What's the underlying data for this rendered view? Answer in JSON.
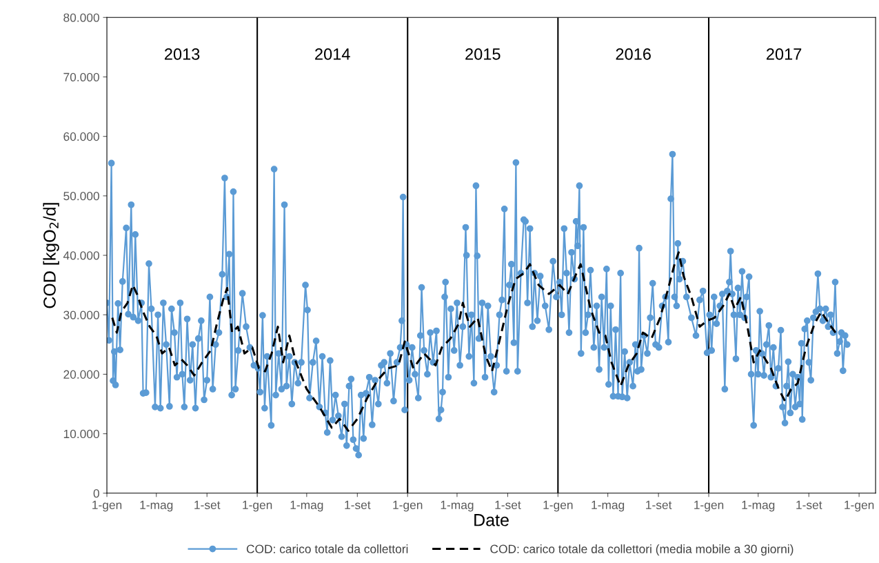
{
  "chart_data": {
    "type": "line",
    "xlabel": "Date",
    "ylabel": "COD [kgO$_{2}$/d]",
    "xlim": [
      "2013-01-01",
      "2018-02-10"
    ],
    "xticks": [
      {
        "value": "2013-01-01",
        "label": "1-gen"
      },
      {
        "value": "2013-05-01",
        "label": "1-mag"
      },
      {
        "value": "2013-09-01",
        "label": "1-set"
      },
      {
        "value": "2014-01-01",
        "label": "1-gen"
      },
      {
        "value": "2014-05-01",
        "label": "1-mag"
      },
      {
        "value": "2014-09-01",
        "label": "1-set"
      },
      {
        "value": "2015-01-01",
        "label": "1-gen"
      },
      {
        "value": "2015-05-01",
        "label": "1-mag"
      },
      {
        "value": "2015-09-01",
        "label": "1-set"
      },
      {
        "value": "2016-01-01",
        "label": "1-gen"
      },
      {
        "value": "2016-05-01",
        "label": "1-mag"
      },
      {
        "value": "2016-09-01",
        "label": "1-set"
      },
      {
        "value": "2017-01-01",
        "label": "1-gen"
      },
      {
        "value": "2017-05-01",
        "label": "1-mag"
      },
      {
        "value": "2017-09-01",
        "label": "1-set"
      },
      {
        "value": "2018-01-01",
        "label": "1-gen"
      }
    ],
    "ylim": [
      0,
      80000
    ],
    "yticks": [
      0,
      {
        "value": 10000,
        "label": "10.000"
      },
      {
        "value": 20000,
        "label": "20.000"
      },
      {
        "value": 30000,
        "label": "30.000"
      },
      {
        "value": 40000,
        "label": "40.000"
      },
      {
        "value": 50000,
        "label": "50.000"
      },
      {
        "value": 60000,
        "label": "60.000"
      },
      {
        "value": 70000,
        "label": "70.000"
      },
      {
        "value": 80000,
        "label": "80.000"
      }
    ],
    "grid": false,
    "legend": "bottom",
    "ref_lines": [
      {
        "axis": "x",
        "value": "2014-01-01",
        "color": "#000000",
        "line_style": "solid"
      },
      {
        "axis": "x",
        "value": "2015-01-01",
        "color": "#000000",
        "line_style": "solid"
      },
      {
        "axis": "x",
        "value": "2016-01-01",
        "color": "#000000",
        "line_style": "solid"
      },
      {
        "axis": "x",
        "value": "2017-01-01",
        "color": "#000000",
        "line_style": "solid"
      }
    ],
    "annotations": [
      "2013",
      "2014",
      "2015",
      "2016",
      "2017"
    ],
    "series": [
      {
        "name": "COD: carico totale da collettori",
        "color": "#5b9bd5",
        "marker": "circle",
        "line_style": "solid",
        "x": [
          "2013-01-01",
          "2013-01-06",
          "2013-01-12",
          "2013-01-16",
          "2013-01-19",
          "2013-01-22",
          "2013-01-28",
          "2013-02-02",
          "2013-02-08",
          "2013-02-17",
          "2013-02-22",
          "2013-03-01",
          "2013-03-06",
          "2013-03-11",
          "2013-03-18",
          "2013-03-26",
          "2013-03-30",
          "2013-04-06",
          "2013-04-13",
          "2013-04-19",
          "2013-04-28",
          "2013-05-05",
          "2013-05-11",
          "2013-05-18",
          "2013-05-25",
          "2013-06-02",
          "2013-06-07",
          "2013-06-14",
          "2013-06-20",
          "2013-06-28",
          "2013-07-03",
          "2013-07-08",
          "2013-07-15",
          "2013-07-22",
          "2013-07-28",
          "2013-08-04",
          "2013-08-11",
          "2013-08-18",
          "2013-08-25",
          "2013-09-01",
          "2013-09-08",
          "2013-09-15",
          "2013-09-22",
          "2013-09-30",
          "2013-10-08",
          "2013-10-14",
          "2013-10-19",
          "2013-10-25",
          "2013-10-31",
          "2013-11-04",
          "2013-11-09",
          "2013-11-16",
          "2013-11-26",
          "2013-12-05",
          "2013-12-14",
          "2013-12-24",
          "2014-01-03",
          "2014-01-08",
          "2014-01-14",
          "2014-01-19",
          "2014-01-25",
          "2014-02-04",
          "2014-02-11",
          "2014-02-15",
          "2014-02-22",
          "2014-03-01",
          "2014-03-08",
          "2014-03-13",
          "2014-03-20",
          "2014-03-26",
          "2014-04-02",
          "2014-04-10",
          "2014-04-18",
          "2014-04-28",
          "2014-05-03",
          "2014-05-08",
          "2014-05-16",
          "2014-05-24",
          "2014-06-01",
          "2014-06-08",
          "2014-06-15",
          "2014-06-20",
          "2014-06-27",
          "2014-07-03",
          "2014-07-10",
          "2014-07-17",
          "2014-07-25",
          "2014-08-01",
          "2014-08-06",
          "2014-08-12",
          "2014-08-17",
          "2014-08-22",
          "2014-08-29",
          "2014-09-04",
          "2014-09-10",
          "2014-09-16",
          "2014-09-22",
          "2014-09-30",
          "2014-10-07",
          "2014-10-14",
          "2014-10-22",
          "2014-10-29",
          "2014-11-05",
          "2014-11-12",
          "2014-11-20",
          "2014-11-28",
          "2014-12-06",
          "2014-12-14",
          "2014-12-18",
          "2014-12-21",
          "2014-12-25",
          "2014-12-29",
          "2015-01-05",
          "2015-01-12",
          "2015-01-19",
          "2015-01-27",
          "2015-02-01",
          "2015-02-04",
          "2015-02-10",
          "2015-02-18",
          "2015-02-25",
          "2015-03-04",
          "2015-03-12",
          "2015-03-18",
          "2015-03-23",
          "2015-03-27",
          "2015-04-01",
          "2015-04-03",
          "2015-04-10",
          "2015-04-16",
          "2015-04-24",
          "2015-05-01",
          "2015-05-08",
          "2015-05-15",
          "2015-05-22",
          "2015-05-24",
          "2015-05-30",
          "2015-06-05",
          "2015-06-11",
          "2015-06-16",
          "2015-06-19",
          "2015-06-23",
          "2015-07-01",
          "2015-07-08",
          "2015-07-15",
          "2015-07-22",
          "2015-07-30",
          "2015-08-05",
          "2015-08-12",
          "2015-08-18",
          "2015-08-24",
          "2015-08-29",
          "2015-09-05",
          "2015-09-10",
          "2015-09-16",
          "2015-09-21",
          "2015-09-25",
          "2015-10-03",
          "2015-10-10",
          "2015-10-14",
          "2015-10-19",
          "2015-10-25",
          "2015-10-31",
          "2015-11-05",
          "2015-11-12",
          "2015-11-19",
          "2015-12-01",
          "2015-12-10",
          "2015-12-20",
          "2015-12-28",
          "2016-01-05",
          "2016-01-10",
          "2016-01-16",
          "2016-01-22",
          "2016-01-28",
          "2016-02-03",
          "2016-02-10",
          "2016-02-14",
          "2016-02-18",
          "2016-02-22",
          "2016-02-26",
          "2016-03-03",
          "2016-03-08",
          "2016-03-14",
          "2016-03-20",
          "2016-03-28",
          "2016-04-04",
          "2016-04-10",
          "2016-04-16",
          "2016-04-22",
          "2016-04-28",
          "2016-05-03",
          "2016-05-08",
          "2016-05-14",
          "2016-05-20",
          "2016-05-26",
          "2016-06-01",
          "2016-06-05",
          "2016-06-11",
          "2016-06-17",
          "2016-06-23",
          "2016-07-01",
          "2016-07-07",
          "2016-07-12",
          "2016-07-16",
          "2016-07-21",
          "2016-07-28",
          "2016-08-05",
          "2016-08-12",
          "2016-08-18",
          "2016-08-25",
          "2016-09-02",
          "2016-09-10",
          "2016-09-18",
          "2016-09-25",
          "2016-10-01",
          "2016-10-05",
          "2016-10-10",
          "2016-10-15",
          "2016-10-18",
          "2016-10-22",
          "2016-10-30",
          "2016-11-08",
          "2016-11-20",
          "2016-12-01",
          "2016-12-10",
          "2016-12-18",
          "2016-12-28",
          "2017-01-03",
          "2017-01-08",
          "2017-01-14",
          "2017-01-20",
          "2017-01-28",
          "2017-02-03",
          "2017-02-09",
          "2017-02-15",
          "2017-02-20",
          "2017-02-23",
          "2017-02-27",
          "2017-03-03",
          "2017-03-08",
          "2017-03-13",
          "2017-03-18",
          "2017-03-23",
          "2017-03-29",
          "2017-04-03",
          "2017-04-09",
          "2017-04-14",
          "2017-04-20",
          "2017-04-26",
          "2017-05-01",
          "2017-05-05",
          "2017-05-10",
          "2017-05-15",
          "2017-05-21",
          "2017-05-27",
          "2017-06-01",
          "2017-06-07",
          "2017-06-13",
          "2017-06-19",
          "2017-06-25",
          "2017-06-29",
          "2017-07-05",
          "2017-07-09",
          "2017-07-13",
          "2017-07-18",
          "2017-07-24",
          "2017-07-30",
          "2017-08-05",
          "2017-08-10",
          "2017-08-14",
          "2017-08-16",
          "2017-08-22",
          "2017-08-28",
          "2017-09-01",
          "2017-09-06",
          "2017-09-12",
          "2017-09-18",
          "2017-09-23",
          "2017-09-28",
          "2017-10-05",
          "2017-10-12",
          "2017-10-18",
          "2017-10-24",
          "2017-10-30",
          "2017-11-04",
          "2017-11-09",
          "2017-11-15",
          "2017-11-19",
          "2017-11-23",
          "2017-11-28",
          "2017-12-03"
        ],
        "values": [
          32000,
          25700,
          55500,
          18900,
          23800,
          18200,
          31900,
          24100,
          35600,
          44600,
          30100,
          48500,
          29600,
          43500,
          29000,
          32000,
          16800,
          16900,
          38600,
          31000,
          14500,
          30000,
          14300,
          32000,
          25000,
          14600,
          31000,
          27000,
          19500,
          32000,
          20000,
          14500,
          29300,
          19000,
          25000,
          14300,
          26000,
          29000,
          15700,
          19000,
          33000,
          17500,
          25000,
          27000,
          36800,
          53000,
          33000,
          40200,
          16500,
          50700,
          17500,
          24000,
          33600,
          28000,
          24500,
          21500,
          21000,
          17000,
          29900,
          14300,
          23000,
          11400,
          54500,
          16500,
          23500,
          17500,
          48500,
          18000,
          23000,
          15000,
          22000,
          18500,
          22000,
          35000,
          30800,
          16000,
          22000,
          25600,
          14500,
          23000,
          13500,
          10200,
          22300,
          12300,
          16500,
          13000,
          9500,
          15000,
          8000,
          18000,
          19200,
          9000,
          7500,
          6400,
          16500,
          9200,
          16800,
          19500,
          11500,
          19000,
          15000,
          21500,
          22000,
          18500,
          23500,
          15500,
          22000,
          24500,
          29000,
          49800,
          14000,
          25000,
          19000,
          24500,
          20000,
          16000,
          26500,
          34600,
          24000,
          20000,
          27000,
          22000,
          27300,
          12500,
          14000,
          17000,
          33000,
          35500,
          19500,
          31000,
          24000,
          32000,
          21500,
          28000,
          44700,
          40000,
          23000,
          30000,
          18500,
          51700,
          39900,
          26000,
          32000,
          19500,
          31500,
          23000,
          17000,
          21500,
          30000,
          32500,
          47800,
          20500,
          35000,
          38500,
          25300,
          55600,
          20500,
          37000,
          46000,
          45700,
          32000,
          44500,
          28000,
          37000,
          29000,
          36500,
          31500,
          27500,
          39000,
          33000,
          35500,
          30000,
          44500,
          37000,
          27000,
          40500,
          36000,
          45700,
          41600,
          51700,
          23500,
          44700,
          27000,
          30000,
          37500,
          24500,
          31500,
          20800,
          33000,
          24500,
          37700,
          18300,
          31500,
          16300,
          27500,
          16300,
          37000,
          16200,
          23800,
          16000,
          22000,
          18000,
          25000,
          20500,
          41200,
          20800,
          26500,
          23500,
          29500,
          35300,
          25000,
          24500,
          31500,
          33000,
          25400,
          49500,
          57000,
          33000,
          31500,
          42000,
          36000,
          39000,
          33000,
          29500,
          26500,
          32500,
          34000,
          23600,
          30000,
          24000,
          33000,
          28500,
          31500,
          33500,
          17500,
          34000,
          35500,
          40700,
          33500,
          30000,
          22600,
          34500,
          30000,
          37300,
          29500,
          33000,
          36400,
          20000,
          11400,
          24000,
          20000,
          30600,
          23500,
          19800,
          25000,
          28200,
          19500,
          24500,
          18000,
          21000,
          27400,
          14500,
          11800,
          18000,
          22100,
          13500,
          20000,
          14500,
          19500,
          15000,
          25200,
          12400,
          27600,
          29000,
          22000,
          19000,
          29500,
          30500,
          36900,
          31000,
          29000,
          31000,
          28000,
          30000,
          27000,
          35500,
          23500,
          25500,
          27000,
          20600,
          26500,
          25000
        ]
      },
      {
        "name": "COD: carico totale da collettori (media mobile a 30 giorni)",
        "color": "#000000",
        "marker": "none",
        "line_style": "dashed",
        "x": [
          "2013-01-14",
          "2013-01-25",
          "2013-02-05",
          "2013-02-20",
          "2013-03-05",
          "2013-03-15",
          "2013-03-30",
          "2013-04-15",
          "2013-05-01",
          "2013-05-15",
          "2013-06-01",
          "2013-06-15",
          "2013-07-01",
          "2013-07-15",
          "2013-08-01",
          "2013-08-20",
          "2013-09-10",
          "2013-09-25",
          "2013-10-10",
          "2013-10-20",
          "2013-11-01",
          "2013-11-15",
          "2013-12-01",
          "2013-12-20",
          "2014-01-05",
          "2014-01-20",
          "2014-02-05",
          "2014-02-20",
          "2014-03-05",
          "2014-03-20",
          "2014-04-05",
          "2014-05-01",
          "2014-06-01",
          "2014-07-01",
          "2014-07-20",
          "2014-08-10",
          "2014-09-01",
          "2014-09-25",
          "2014-10-20",
          "2014-11-15",
          "2014-12-10",
          "2014-12-25",
          "2015-01-15",
          "2015-02-10",
          "2015-03-10",
          "2015-03-25",
          "2015-04-15",
          "2015-05-05",
          "2015-05-15",
          "2015-06-01",
          "2015-06-20",
          "2015-07-10",
          "2015-07-25",
          "2015-08-15",
          "2015-09-01",
          "2015-09-20",
          "2015-10-10",
          "2015-10-25",
          "2015-11-15",
          "2015-12-10",
          "2016-01-05",
          "2016-01-25",
          "2016-02-15",
          "2016-02-25",
          "2016-03-20",
          "2016-04-10",
          "2016-04-25",
          "2016-05-10",
          "2016-06-01",
          "2016-06-20",
          "2016-07-10",
          "2016-07-25",
          "2016-08-15",
          "2016-09-05",
          "2016-09-25",
          "2016-10-10",
          "2016-10-20",
          "2016-11-01",
          "2016-11-20",
          "2016-12-10",
          "2016-12-28",
          "2017-01-15",
          "2017-02-05",
          "2017-02-20",
          "2017-03-05",
          "2017-03-20",
          "2017-04-05",
          "2017-04-20",
          "2017-05-05",
          "2017-06-01",
          "2017-06-20",
          "2017-07-05",
          "2017-07-20",
          "2017-08-05",
          "2017-08-25",
          "2017-09-15",
          "2017-10-01",
          "2017-10-20",
          "2017-11-10"
        ],
        "values": [
          29500,
          27000,
          30500,
          32000,
          35000,
          33500,
          30500,
          28000,
          26500,
          23500,
          24500,
          21500,
          22500,
          21500,
          19800,
          22000,
          24000,
          28500,
          32500,
          34500,
          27000,
          28000,
          23500,
          24500,
          21000,
          20500,
          23500,
          28000,
          22000,
          26500,
          22000,
          17500,
          14500,
          11000,
          12500,
          10500,
          12500,
          16000,
          19000,
          21000,
          21500,
          25500,
          21000,
          23500,
          21500,
          24500,
          26000,
          28500,
          32000,
          28000,
          29500,
          23000,
          20500,
          26500,
          31500,
          36000,
          37000,
          38500,
          35000,
          33500,
          35000,
          33500,
          37000,
          38500,
          31000,
          27000,
          26500,
          22000,
          18000,
          21500,
          23500,
          27000,
          26000,
          29500,
          34500,
          38500,
          40500,
          36500,
          33000,
          28000,
          29000,
          29500,
          31500,
          33500,
          31000,
          33000,
          28000,
          22000,
          24000,
          21000,
          17500,
          15500,
          17500,
          18500,
          24500,
          28500,
          30500,
          28500,
          26500
        ]
      }
    ]
  }
}
